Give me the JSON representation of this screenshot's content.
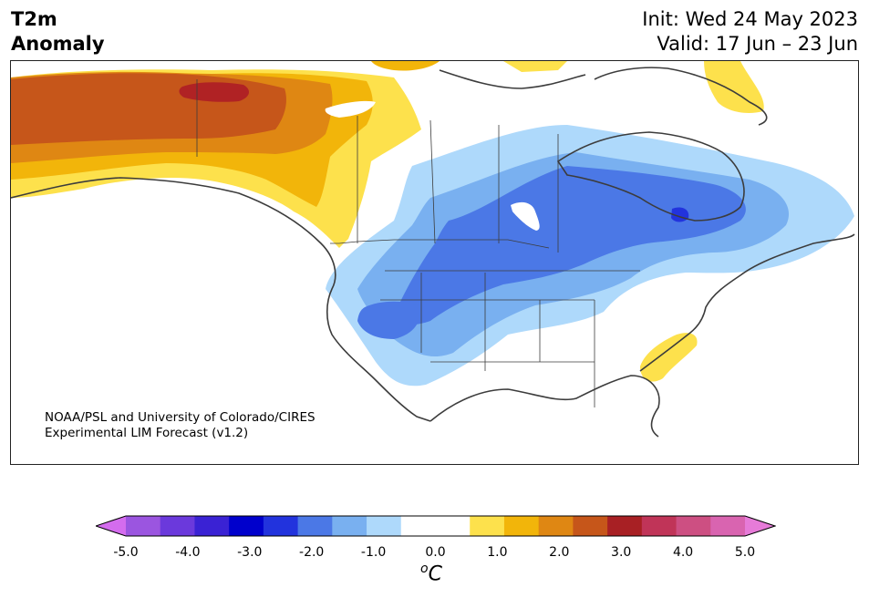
{
  "header": {
    "variable": "T2m",
    "subtitle": "Anomaly",
    "init": "Init: Wed 24 May 2023",
    "valid": "Valid: 17 Jun – 23 Jun"
  },
  "credit": {
    "line1": "NOAA/PSL and University of Colorado/CIRES",
    "line2": "Experimental LIM Forecast (v1.2)"
  },
  "colorbar": {
    "ticks": [
      "-5.0",
      "-4.0",
      "-3.0",
      "-2.0",
      "-1.0",
      "0.0",
      "1.0",
      "2.0",
      "3.0",
      "4.0",
      "5.0"
    ],
    "unit_base": "C",
    "unit_sup": "o",
    "colors": [
      "#9b55e0",
      "#6b39dc",
      "#3a22d4",
      "#0000cc",
      "#2233dd",
      "#4b78e6",
      "#79b0f0",
      "#aed9fb",
      "#ffffff",
      "#ffffff",
      "#fde14c",
      "#f2b50a",
      "#df8713",
      "#c6561a",
      "#a82024",
      "#c03458",
      "#cd4f82",
      "#d964b0"
    ],
    "under_color": "#d46cee",
    "over_color": "#e67bd8"
  },
  "colors": {
    "coast": "#3c3c3c",
    "warm_1": "#fde14c",
    "warm_2": "#f2b50a",
    "warm_3": "#df8713",
    "warm_4": "#c6561a",
    "warm_5": "#b02224",
    "cool_1": "#aed9fb",
    "cool_2": "#79b0f0",
    "cool_3": "#4b78e6",
    "cool_4": "#2233dd"
  }
}
